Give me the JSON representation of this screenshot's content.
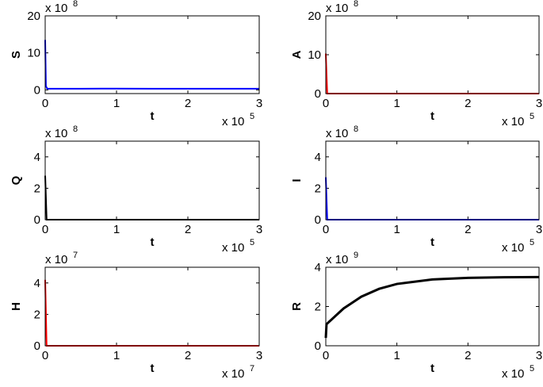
{
  "chart_data": [
    {
      "type": "line",
      "ylabel": "S",
      "xlabel": "t",
      "color": "#0000ff",
      "x": [
        0,
        0.01,
        0.03,
        0.5,
        1,
        1.5,
        2,
        2.5,
        3
      ],
      "values": [
        13.5,
        1,
        0.3,
        0.3,
        0.35,
        0.3,
        0.3,
        0.3,
        0.3
      ],
      "xlim": [
        0,
        3
      ],
      "xticks": [
        0,
        1,
        2,
        3
      ],
      "ylim": [
        -1,
        20
      ],
      "yticks": [
        0,
        10,
        20
      ],
      "x_multiplier": "x 10",
      "x_exponent": "5",
      "y_multiplier": "x 10",
      "y_exponent": "8"
    },
    {
      "type": "line",
      "ylabel": "A",
      "xlabel": "t",
      "color": "#ff0000",
      "x": [
        0,
        0.02,
        0.5,
        1,
        1.5,
        2,
        2.5,
        3
      ],
      "values": [
        10.3,
        0,
        0,
        0,
        0,
        0,
        0,
        0
      ],
      "xlim": [
        0,
        3
      ],
      "xticks": [
        0,
        1,
        2,
        3
      ],
      "ylim": [
        0,
        20
      ],
      "yticks": [
        0,
        10,
        20
      ],
      "x_multiplier": "x 10",
      "x_exponent": "5",
      "y_multiplier": "x 10",
      "y_exponent": "8"
    },
    {
      "type": "line",
      "ylabel": "Q",
      "xlabel": "t",
      "color": "#000000",
      "x": [
        0,
        0.02,
        0.5,
        1,
        1.5,
        2,
        2.5,
        3
      ],
      "values": [
        2.8,
        0,
        0,
        0,
        0,
        0,
        0,
        0
      ],
      "xlim": [
        0,
        3
      ],
      "xticks": [
        0,
        1,
        2,
        3
      ],
      "ylim": [
        0,
        5
      ],
      "yticks": [
        0,
        2,
        4
      ],
      "x_multiplier": "x 10",
      "x_exponent": "5",
      "y_multiplier": "x 10",
      "y_exponent": "8"
    },
    {
      "type": "line",
      "ylabel": "I",
      "xlabel": "t",
      "color": "#0000ff",
      "x": [
        0,
        0.02,
        0.5,
        1,
        1.5,
        2,
        2.5,
        3
      ],
      "values": [
        2.7,
        0,
        0,
        0,
        0,
        0,
        0,
        0
      ],
      "xlim": [
        0,
        3
      ],
      "xticks": [
        0,
        1,
        2,
        3
      ],
      "ylim": [
        0,
        5
      ],
      "yticks": [
        0,
        2,
        4
      ],
      "x_multiplier": "x 10",
      "x_exponent": "5",
      "y_multiplier": "x 10",
      "y_exponent": "8"
    },
    {
      "type": "line",
      "ylabel": "H",
      "xlabel": "t",
      "color": "#ff0000",
      "x": [
        0,
        0.02,
        0.5,
        1,
        1.5,
        2,
        2.5,
        3
      ],
      "values": [
        4.2,
        0,
        0,
        0,
        0,
        0,
        0,
        0
      ],
      "xlim": [
        0,
        3
      ],
      "xticks": [
        0,
        1,
        2,
        3
      ],
      "ylim": [
        0,
        5
      ],
      "yticks": [
        0,
        2,
        4
      ],
      "x_multiplier": "x 10",
      "x_exponent": "7",
      "y_multiplier": "x 10",
      "y_exponent": "7"
    },
    {
      "type": "line",
      "ylabel": "R",
      "xlabel": "t",
      "color": "#000000",
      "x": [
        0,
        0.01,
        0.25,
        0.5,
        0.75,
        1,
        1.5,
        2,
        2.5,
        3
      ],
      "values": [
        0.4,
        1.1,
        1.9,
        2.5,
        2.9,
        3.15,
        3.38,
        3.46,
        3.49,
        3.5
      ],
      "xlim": [
        0,
        3
      ],
      "xticks": [
        0,
        1,
        2,
        3
      ],
      "ylim": [
        0,
        4
      ],
      "yticks": [
        0,
        2,
        4
      ],
      "x_multiplier": "x 10",
      "x_exponent": "5",
      "y_multiplier": "x 10",
      "y_exponent": "9"
    }
  ]
}
